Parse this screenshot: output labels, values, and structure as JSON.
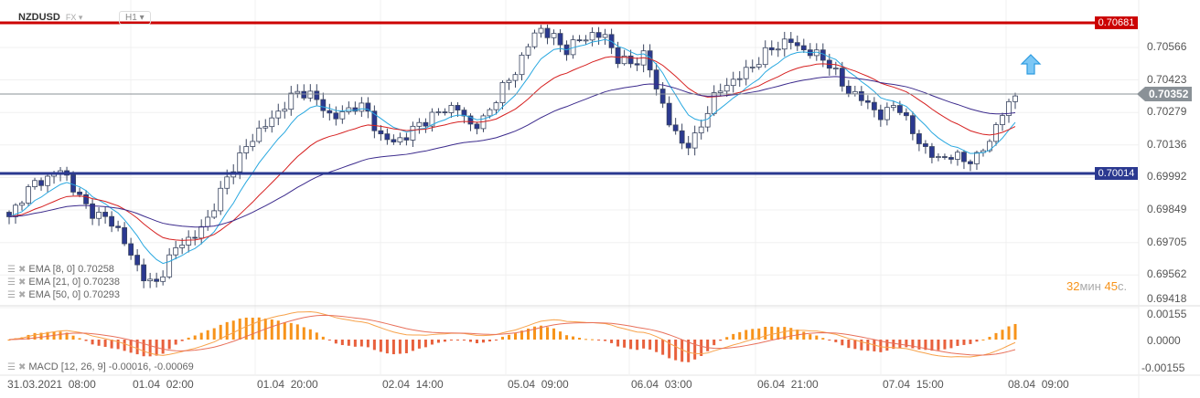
{
  "header": {
    "symbol": "NZDUSD",
    "market": "FX",
    "timeframe": "H1"
  },
  "colors": {
    "resistance": "#cc0000",
    "support": "#2b3990",
    "ema8": "#29a8e0",
    "ema21": "#d62020",
    "ema50": "#3b2a8c",
    "bull": "#ffffff",
    "bear": "#2b3990",
    "hist_pos": "#f7931a",
    "hist_neg": "#e8603c",
    "current": "#8a9197"
  },
  "price_axis": {
    "labels": [
      "0.70566",
      "0.70423",
      "0.70279",
      "0.70136",
      "0.69992",
      "0.69849",
      "0.69705",
      "0.69562",
      "0.69418"
    ],
    "min": 0.69418,
    "max": 0.70681
  },
  "levels": {
    "resistance": "0.70681",
    "support": "0.70014",
    "current": "0.70352"
  },
  "macd_axis": [
    "0.00155",
    "0.0000",
    "-0.00155"
  ],
  "indicators": [
    {
      "label": "EMA [8, 0] 0.70258"
    },
    {
      "label": "EMA [21, 0] 0.70238"
    },
    {
      "label": "EMA [50, 0] 0.70293"
    }
  ],
  "macd_label": "MACD [12, 26, 9] -0.00016, -0.00069",
  "time_axis": [
    "31.03.2021  08:00",
    "01.04  02:00",
    "01.04  20:00",
    "02.04  14:00",
    "05.04  09:00",
    "06.04  03:00",
    "06.04  21:00",
    "07.04  15:00",
    "08.04  09:00"
  ],
  "timer": {
    "min": "32",
    "min_unit": "мин",
    "sec": "45",
    "sec_unit": "с."
  },
  "signal": "buy-arrow-icon",
  "price_path": [
    0.69809,
    0.6991,
    0.6997,
    0.6999,
    0.7003,
    0.6993,
    0.69849,
    0.69817,
    0.69789,
    0.69668,
    0.69567,
    0.69507,
    0.69627,
    0.69708,
    0.69728,
    0.69809,
    0.6993,
    0.70051,
    0.70131,
    0.70212,
    0.70252,
    0.70333,
    0.70373,
    0.70353,
    0.70272,
    0.7026,
    0.70313,
    0.70292,
    0.70172,
    0.70151,
    0.70172,
    0.70232,
    0.7026,
    0.70301,
    0.70292,
    0.70212,
    0.70252,
    0.70373,
    0.70433,
    0.70554,
    0.70655,
    0.70615,
    0.70554,
    0.70595,
    0.70623,
    0.70615,
    0.70514,
    0.70494,
    0.70534,
    0.70373,
    0.70212,
    0.70131,
    0.70172,
    0.70333,
    0.70393,
    0.70433,
    0.70474,
    0.70534,
    0.70575,
    0.70595,
    0.70554,
    0.70534,
    0.70494,
    0.70393,
    0.70353,
    0.70313,
    0.70252,
    0.70333,
    0.70212,
    0.70131,
    0.70071,
    0.70091,
    0.70071,
    0.70071,
    0.70151,
    0.70272,
    0.70352
  ]
}
